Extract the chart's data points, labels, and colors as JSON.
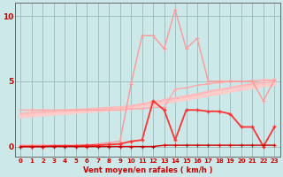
{
  "x": [
    0,
    1,
    2,
    3,
    4,
    5,
    6,
    7,
    8,
    9,
    10,
    11,
    12,
    13,
    14,
    15,
    16,
    17,
    18,
    19,
    20,
    21,
    22,
    23
  ],
  "rafales_light": [
    0.1,
    0.1,
    0.1,
    0.1,
    0.1,
    0.1,
    0.1,
    0.2,
    0.3,
    0.4,
    4.8,
    8.5,
    8.5,
    7.5,
    10.5,
    7.5,
    8.3,
    5.0,
    5.0,
    5.0,
    5.0,
    5.0,
    3.5,
    5.1
  ],
  "moyen_light": [
    2.8,
    2.8,
    2.8,
    2.8,
    2.8,
    2.8,
    2.8,
    2.8,
    2.8,
    2.8,
    2.9,
    2.9,
    3.0,
    3.0,
    4.4,
    4.5,
    4.7,
    4.8,
    4.9,
    5.0,
    5.0,
    5.05,
    5.1,
    5.1
  ],
  "slope_upper": [
    2.5,
    2.6,
    2.65,
    2.7,
    2.75,
    2.8,
    2.85,
    2.9,
    2.95,
    3.0,
    3.1,
    3.25,
    3.4,
    3.55,
    3.7,
    3.85,
    4.0,
    4.2,
    4.35,
    4.5,
    4.65,
    4.8,
    4.9,
    5.0
  ],
  "slope_lower": [
    2.3,
    2.38,
    2.45,
    2.52,
    2.58,
    2.64,
    2.7,
    2.76,
    2.82,
    2.9,
    3.0,
    3.12,
    3.25,
    3.38,
    3.52,
    3.65,
    3.8,
    3.95,
    4.1,
    4.25,
    4.4,
    4.55,
    4.68,
    4.8
  ],
  "moyen_dark": [
    0.0,
    0.0,
    0.0,
    0.05,
    0.05,
    0.05,
    0.1,
    0.1,
    0.15,
    0.2,
    0.4,
    0.5,
    3.5,
    2.8,
    0.5,
    2.8,
    2.8,
    2.7,
    2.7,
    2.5,
    1.5,
    1.5,
    0.0,
    1.5
  ],
  "rafales_dark": [
    0.0,
    0.0,
    0.0,
    0.0,
    0.0,
    0.0,
    0.0,
    0.0,
    0.0,
    0.0,
    0.0,
    0.0,
    0.0,
    0.1,
    0.1,
    0.1,
    0.1,
    0.1,
    0.1,
    0.1,
    0.1,
    0.1,
    0.1,
    0.1
  ],
  "bg_color": "#cce8e8",
  "grid_color": "#99bbbb",
  "color_light_peak": "#ff9999",
  "color_light_flat": "#ffaaaa",
  "color_slope_upper": "#ffbbbb",
  "color_slope_lower": "#ffcccc",
  "color_dark_med": "#ff3333",
  "color_dark_base": "#cc0000",
  "xlabel": "Vent moyen/en rafales ( km/h )",
  "ylim": [
    -0.8,
    11.0
  ],
  "xlim": [
    -0.5,
    23.5
  ],
  "yticks": [
    0,
    5,
    10
  ],
  "xticks": [
    0,
    1,
    2,
    3,
    4,
    5,
    6,
    7,
    8,
    9,
    10,
    11,
    12,
    13,
    14,
    15,
    16,
    17,
    18,
    19,
    20,
    21,
    22,
    23
  ]
}
